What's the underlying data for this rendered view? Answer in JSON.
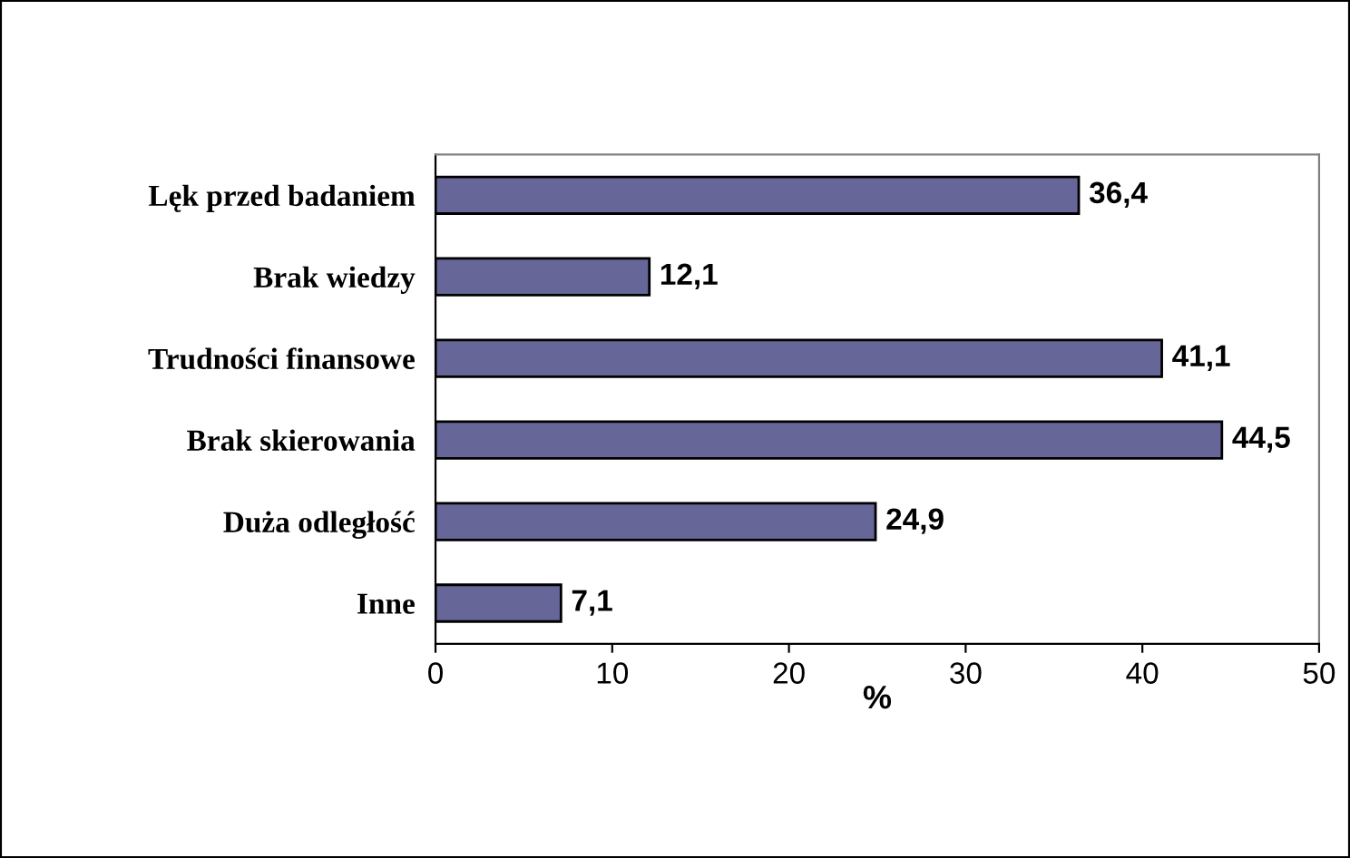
{
  "chart_data": {
    "type": "bar",
    "orientation": "horizontal",
    "xlabel": "%",
    "categories": [
      "Lęk przed badaniem",
      "Brak wiedzy",
      "Trudności finansowe",
      "Brak skierowania",
      "Duża odległość",
      "Inne"
    ],
    "values": [
      36.4,
      12.1,
      41.1,
      44.5,
      24.9,
      7.1
    ],
    "value_labels": [
      "36,4",
      "12,1",
      "41,1",
      "44,5",
      "24,9",
      "7,1"
    ],
    "color": "#666699",
    "xlim": [
      0,
      50
    ],
    "xticks": [
      0,
      10,
      20,
      30,
      40,
      50
    ],
    "grid": false,
    "legend": false
  }
}
